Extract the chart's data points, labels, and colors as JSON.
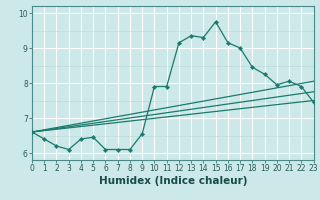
{
  "xlabel": "Humidex (Indice chaleur)",
  "bg_color": "#cce8e8",
  "line_color": "#1a7a6e",
  "grid_major_color": "#ffffff",
  "grid_minor_color": "#b8d8d8",
  "x_values": [
    0,
    1,
    2,
    3,
    4,
    5,
    6,
    7,
    8,
    9,
    10,
    11,
    12,
    13,
    14,
    15,
    16,
    17,
    18,
    19,
    20,
    21,
    22,
    23
  ],
  "series1": [
    6.6,
    6.4,
    6.2,
    6.1,
    6.4,
    6.45,
    6.1,
    6.1,
    6.1,
    6.55,
    7.9,
    7.9,
    9.15,
    9.35,
    9.3,
    9.75,
    9.15,
    9.0,
    8.45,
    8.25,
    7.95,
    8.05,
    7.9,
    7.45
  ],
  "series2_x": [
    0,
    23
  ],
  "series2_y": [
    6.6,
    7.5
  ],
  "series3_x": [
    0,
    23
  ],
  "series3_y": [
    6.6,
    8.05
  ],
  "series4_x": [
    0,
    23
  ],
  "series4_y": [
    6.6,
    7.75
  ],
  "xlim": [
    0,
    23
  ],
  "ylim": [
    5.8,
    10.2
  ],
  "yticks": [
    6,
    7,
    8,
    9,
    10
  ],
  "xticks": [
    0,
    1,
    2,
    3,
    4,
    5,
    6,
    7,
    8,
    9,
    10,
    11,
    12,
    13,
    14,
    15,
    16,
    17,
    18,
    19,
    20,
    21,
    22,
    23
  ],
  "tick_fontsize": 5.5,
  "xlabel_fontsize": 7.5,
  "markersize": 2.2,
  "linewidth": 0.9
}
